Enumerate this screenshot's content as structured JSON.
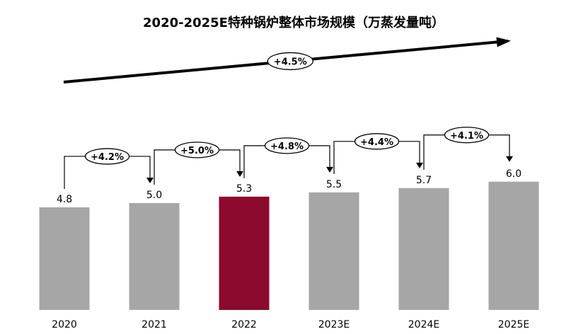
{
  "chart_data": {
    "type": "bar",
    "title": "2020-2025E特种锅炉整体市场规模（万蒸发量吨）",
    "categories": [
      "2020",
      "2021",
      "2022",
      "2023E",
      "2024E",
      "2025E"
    ],
    "values": [
      4.8,
      5.0,
      5.3,
      5.5,
      5.7,
      6.0
    ],
    "value_labels": [
      "4.8",
      "5.0",
      "5.3",
      "5.5",
      "5.7",
      "6.0"
    ],
    "highlight_index": 2,
    "colors": {
      "bar": "#a6a6a6",
      "highlight": "#8b0a2e",
      "text": "#000000"
    },
    "growth_labels": [
      "+4.2%",
      "+5.0%",
      "+4.8%",
      "+4.4%",
      "+4.1%"
    ],
    "overall_growth": "+4.5%",
    "xlabel": "",
    "ylabel": "",
    "grid": false
  }
}
